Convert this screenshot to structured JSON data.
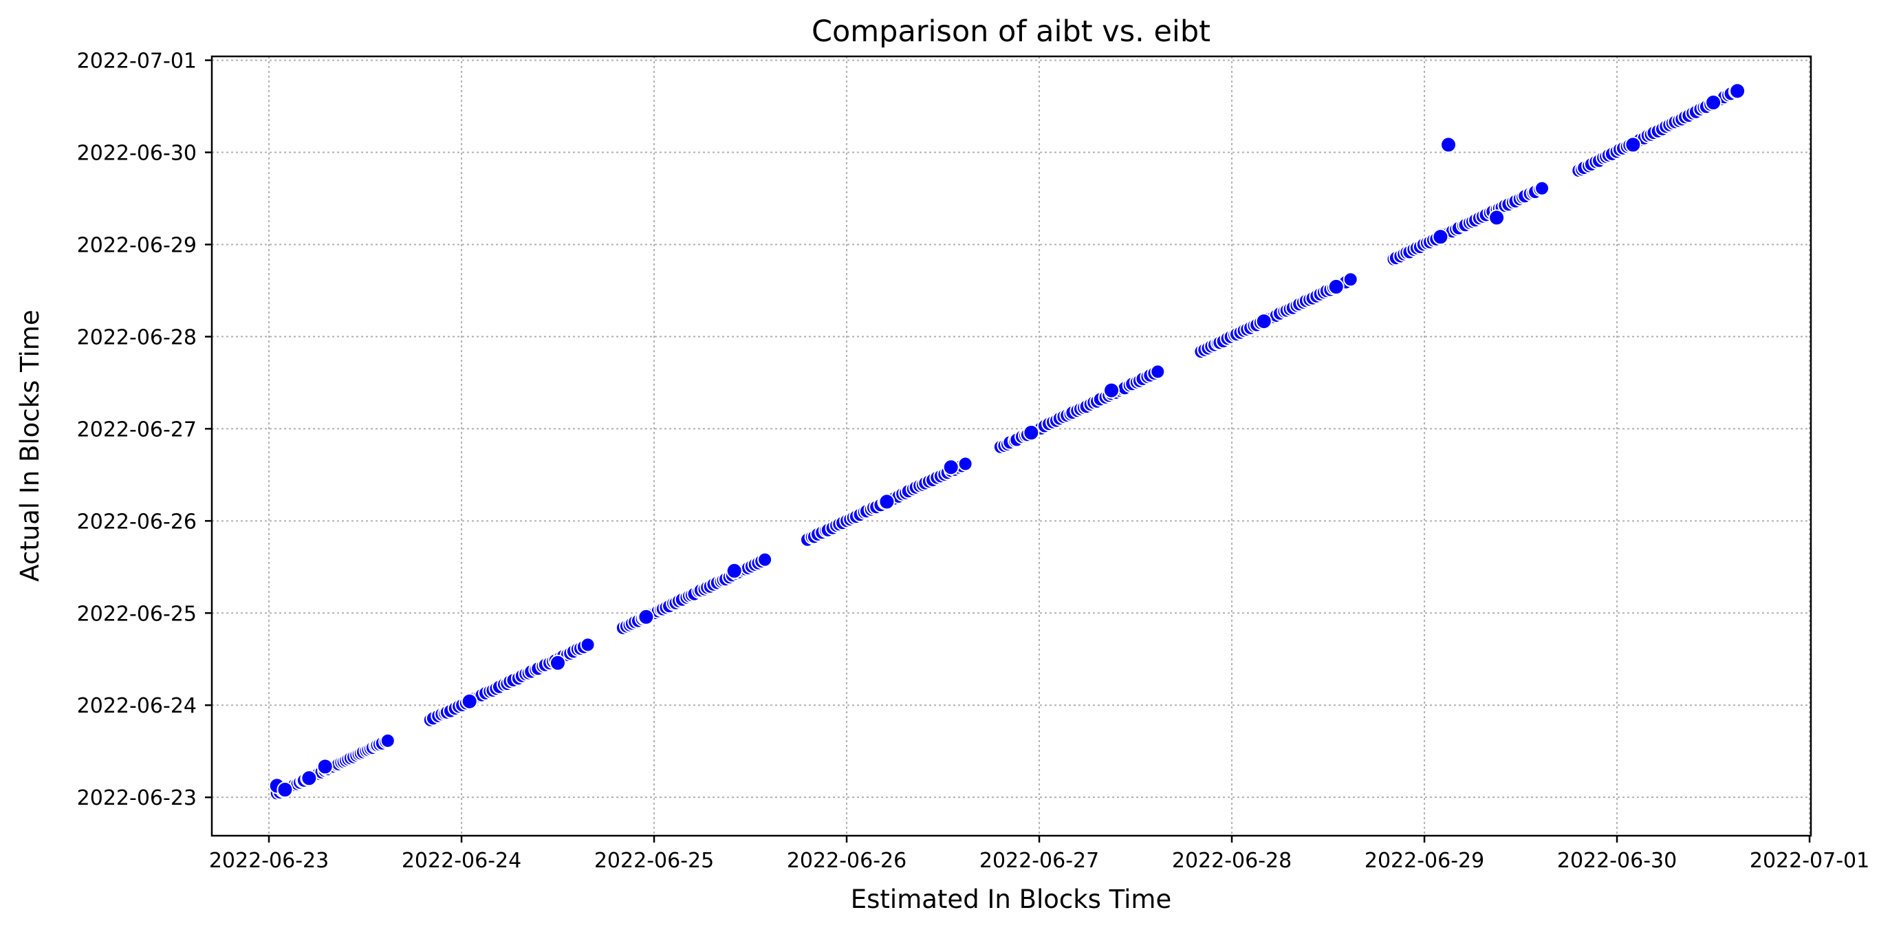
{
  "chart_data": {
    "type": "scatter",
    "title": "Comparison of aibt vs. eibt",
    "xlabel": "Estimated In Blocks Time",
    "ylabel": "Actual In Blocks Time",
    "x_axis": {
      "scale": "time",
      "range": [
        "2022-06-22T16:53",
        "2022-07-01T00:10"
      ],
      "ticks": [
        "2022-06-23",
        "2022-06-24",
        "2022-06-25",
        "2022-06-26",
        "2022-06-27",
        "2022-06-28",
        "2022-06-29",
        "2022-06-30",
        "2022-07-01"
      ]
    },
    "y_axis": {
      "scale": "time",
      "range": [
        "2022-06-22T14:00",
        "2022-07-01T01:00"
      ],
      "ticks": [
        "2022-06-23",
        "2022-06-24",
        "2022-06-25",
        "2022-06-26",
        "2022-06-27",
        "2022-06-28",
        "2022-06-29",
        "2022-06-30",
        "2022-07-01"
      ]
    },
    "grid": true,
    "marker_color": "#0000ff",
    "marker_edge_color": "#ffffff",
    "clusters": [
      {
        "x_start": "2022-06-23T01:00",
        "x_end": "2022-06-23T15:00",
        "y_start": "2022-06-23T01:00",
        "y_end": "2022-06-23T15:00"
      },
      {
        "x_start": "2022-06-23T20:00",
        "x_end": "2022-06-24T16:00",
        "y_start": "2022-06-23T20:00",
        "y_end": "2022-06-24T16:00"
      },
      {
        "x_start": "2022-06-24T20:00",
        "x_end": "2022-06-25T14:00",
        "y_start": "2022-06-24T20:00",
        "y_end": "2022-06-25T14:00"
      },
      {
        "x_start": "2022-06-25T19:00",
        "x_end": "2022-06-26T15:00",
        "y_start": "2022-06-25T19:00",
        "y_end": "2022-06-26T15:00"
      },
      {
        "x_start": "2022-06-26T19:00",
        "x_end": "2022-06-27T15:00",
        "y_start": "2022-06-26T19:00",
        "y_end": "2022-06-27T15:00"
      },
      {
        "x_start": "2022-06-27T20:00",
        "x_end": "2022-06-28T15:00",
        "y_start": "2022-06-27T20:00",
        "y_end": "2022-06-28T15:00"
      },
      {
        "x_start": "2022-06-28T20:00",
        "x_end": "2022-06-29T15:00",
        "y_start": "2022-06-28T20:00",
        "y_end": "2022-06-29T15:00"
      },
      {
        "x_start": "2022-06-29T19:00",
        "x_end": "2022-06-30T15:00",
        "y_start": "2022-06-29T19:00",
        "y_end": "2022-06-30T16:00"
      }
    ],
    "points": [
      {
        "x": "2022-06-23T01:00",
        "y": "2022-06-23T03:00"
      },
      {
        "x": "2022-06-23T02:00",
        "y": "2022-06-23T02:00"
      },
      {
        "x": "2022-06-23T05:00",
        "y": "2022-06-23T05:00"
      },
      {
        "x": "2022-06-23T07:00",
        "y": "2022-06-23T08:00"
      },
      {
        "x": "2022-06-24T01:00",
        "y": "2022-06-24T01:00"
      },
      {
        "x": "2022-06-24T12:00",
        "y": "2022-06-24T11:00"
      },
      {
        "x": "2022-06-24T23:00",
        "y": "2022-06-24T23:00"
      },
      {
        "x": "2022-06-25T10:00",
        "y": "2022-06-25T11:00"
      },
      {
        "x": "2022-06-26T05:00",
        "y": "2022-06-26T05:00"
      },
      {
        "x": "2022-06-26T13:00",
        "y": "2022-06-26T14:00"
      },
      {
        "x": "2022-06-26T23:00",
        "y": "2022-06-26T23:00"
      },
      {
        "x": "2022-06-27T09:00",
        "y": "2022-06-27T10:00"
      },
      {
        "x": "2022-06-28T04:00",
        "y": "2022-06-28T04:00"
      },
      {
        "x": "2022-06-28T13:00",
        "y": "2022-06-28T13:00"
      },
      {
        "x": "2022-06-29T02:00",
        "y": "2022-06-29T02:00"
      },
      {
        "x": "2022-06-29T03:00",
        "y": "2022-06-30T02:00"
      },
      {
        "x": "2022-06-29T09:00",
        "y": "2022-06-29T07:00"
      },
      {
        "x": "2022-06-30T02:00",
        "y": "2022-06-30T02:00"
      },
      {
        "x": "2022-06-30T12:00",
        "y": "2022-06-30T13:00"
      },
      {
        "x": "2022-06-30T15:00",
        "y": "2022-06-30T16:00"
      }
    ]
  }
}
